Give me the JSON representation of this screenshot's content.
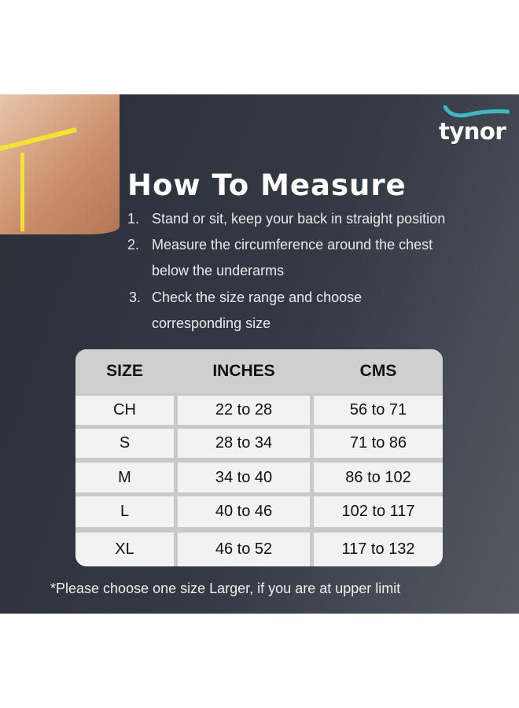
{
  "brand": {
    "logo_text": "tynor",
    "accent": "#3fb8c4"
  },
  "title": "How To Measure",
  "steps": [
    {
      "num": "1.",
      "lines": [
        "Stand or sit, keep your back in straight position"
      ]
    },
    {
      "num": "2.",
      "lines": [
        "Measure the circumference around the chest",
        "below the underarms"
      ]
    },
    {
      "num": "3.",
      "lines": [
        "Check the size range and choose",
        "corresponding size"
      ]
    }
  ],
  "table": {
    "headers": [
      "SIZE",
      "INCHES",
      "CMS"
    ],
    "rows": [
      [
        "CH",
        "22 to 28",
        "56 to 71"
      ],
      [
        "S",
        "28 to 34",
        "71 to 86"
      ],
      [
        "M",
        "34 to 40",
        "86 to 102"
      ],
      [
        "L",
        "40 to 46",
        "102 to 117"
      ],
      [
        "XL",
        "46 to 52",
        "117 to 132"
      ]
    ]
  },
  "note": "*Please choose one size Larger, if you are at upper limit"
}
